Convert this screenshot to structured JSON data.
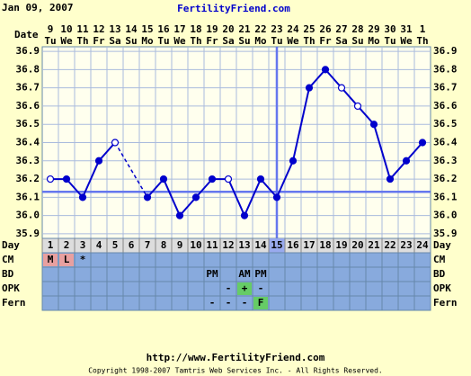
{
  "header": {
    "date": "Jan 09, 2007",
    "site": "FertilityFriend.com"
  },
  "chart_data": {
    "type": "line",
    "x_label": "Date",
    "dates": [
      "9",
      "10",
      "11",
      "12",
      "13",
      "14",
      "15",
      "16",
      "17",
      "18",
      "19",
      "20",
      "21",
      "22",
      "23",
      "24",
      "25",
      "26",
      "27",
      "28",
      "29",
      "30",
      "31",
      "1"
    ],
    "weekdays": [
      "Tu",
      "We",
      "Th",
      "Fr",
      "Sa",
      "Su",
      "Mo",
      "Tu",
      "We",
      "Th",
      "Fr",
      "Sa",
      "Su",
      "Mo",
      "Tu",
      "We",
      "Th",
      "Fr",
      "Sa",
      "Su",
      "Mo",
      "Tu",
      "We",
      "Th"
    ],
    "day_label": "Day",
    "days": [
      1,
      2,
      3,
      4,
      5,
      6,
      7,
      8,
      9,
      10,
      11,
      12,
      13,
      14,
      15,
      16,
      17,
      18,
      19,
      20,
      21,
      22,
      23,
      24
    ],
    "values": [
      36.2,
      36.2,
      36.1,
      36.3,
      36.4,
      null,
      36.1,
      36.2,
      36.0,
      36.1,
      36.2,
      36.2,
      36.0,
      36.2,
      36.1,
      36.3,
      36.7,
      36.8,
      36.7,
      36.6,
      36.5,
      36.2,
      36.3,
      36.4
    ],
    "hollow": [
      true,
      false,
      false,
      false,
      true,
      false,
      false,
      false,
      false,
      false,
      false,
      true,
      false,
      false,
      false,
      false,
      false,
      false,
      true,
      true,
      false,
      false,
      false,
      false
    ],
    "color": "#0000cc",
    "ylim": [
      35.875,
      36.925
    ],
    "yticks": [
      35.9,
      {
        "value": 36,
        "label": "36.0"
      },
      36.1,
      36.2,
      36.3,
      36.4,
      36.5,
      36.6,
      36.7,
      36.8,
      36.9
    ],
    "grid": true,
    "coverline": 36.13,
    "ovulation_day": 15,
    "rows": [
      {
        "label": "CM",
        "cells": [
          "M",
          "L",
          "*",
          null,
          null,
          null,
          null,
          null,
          null,
          null,
          null,
          null,
          null,
          null,
          null,
          null,
          null,
          null,
          null,
          null,
          null,
          null,
          null,
          null
        ],
        "colors": [
          "#e8a0a0",
          "#e8a0a0",
          null,
          null,
          null,
          null,
          null,
          null,
          null,
          null,
          null,
          null,
          null,
          null,
          null,
          null,
          null,
          null,
          null,
          null,
          null,
          null,
          null,
          null
        ]
      },
      {
        "label": "BD",
        "cells": [
          null,
          null,
          null,
          null,
          null,
          null,
          null,
          null,
          null,
          null,
          "PM",
          null,
          "AM",
          "PM",
          null,
          null,
          null,
          null,
          null,
          null,
          null,
          null,
          null,
          null
        ],
        "colors": [
          null,
          null,
          null,
          null,
          null,
          null,
          null,
          null,
          null,
          null,
          null,
          null,
          null,
          null,
          null,
          null,
          null,
          null,
          null,
          null,
          null,
          null,
          null,
          null
        ]
      },
      {
        "label": "OPK",
        "cells": [
          null,
          null,
          null,
          null,
          null,
          null,
          null,
          null,
          null,
          null,
          null,
          "-",
          "+",
          "-",
          null,
          null,
          null,
          null,
          null,
          null,
          null,
          null,
          null,
          null
        ],
        "colors": [
          null,
          null,
          null,
          null,
          null,
          null,
          null,
          null,
          null,
          null,
          null,
          null,
          "#66cc66",
          null,
          null,
          null,
          null,
          null,
          null,
          null,
          null,
          null,
          null,
          null
        ]
      },
      {
        "label": "Fern",
        "cells": [
          null,
          null,
          null,
          null,
          null,
          null,
          null,
          null,
          null,
          null,
          "-",
          "-",
          "-",
          "F",
          null,
          null,
          null,
          null,
          null,
          null,
          null,
          null,
          null,
          null
        ],
        "colors": [
          null,
          null,
          null,
          null,
          null,
          null,
          null,
          null,
          null,
          null,
          null,
          null,
          null,
          "#66cc66",
          null,
          null,
          null,
          null,
          null,
          null,
          null,
          null,
          null,
          null
        ]
      }
    ]
  },
  "footer": {
    "url": "http://www.FertilityFriend.com",
    "copyright": "Copyright 1998-2007 Tamtris Web Services Inc. - All Rights Reserved."
  }
}
